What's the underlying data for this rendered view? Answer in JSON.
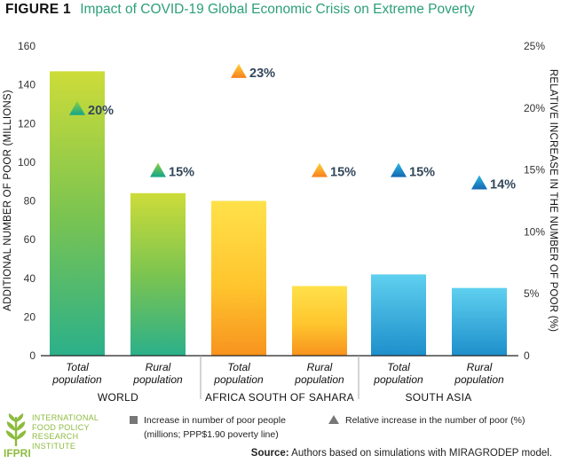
{
  "figure": {
    "number": "FIGURE 1",
    "title": "Impact of COVID-19 Global Economic Crisis on Extreme Poverty"
  },
  "colors": {
    "title": "#2c9f7a",
    "world_green": "#8dc63f",
    "africa_orange": "#f7a21b",
    "asia_blue": "#29a8df",
    "label_text": "#33475b"
  },
  "chart_data": {
    "type": "bar",
    "title": "",
    "ylabel_left": "ADDITIONAL NUMBER OF POOR (MILLIONS)",
    "ylabel_right": "RELATIVE INCREASE IN THE NUMBER OF POOR (%)",
    "ylim_left": [
      0,
      160
    ],
    "ylim_right": [
      0,
      25
    ],
    "yticks_left": [
      "0",
      "20",
      "40",
      "60",
      "80",
      "100",
      "120",
      "140",
      "160"
    ],
    "yticks_right": [
      "0",
      "5%",
      "10%",
      "15%",
      "20%",
      "25%"
    ],
    "groups": [
      "WORLD",
      "AFRICA SOUTH OF SAHARA",
      "SOUTH ASIA"
    ],
    "categories": [
      {
        "line1": "Total",
        "line2": "population",
        "group": "WORLD"
      },
      {
        "line1": "Rural",
        "line2": "population",
        "group": "WORLD"
      },
      {
        "line1": "Total",
        "line2": "population",
        "group": "AFRICA SOUTH OF SAHARA"
      },
      {
        "line1": "Rural",
        "line2": "population",
        "group": "AFRICA SOUTH OF SAHARA"
      },
      {
        "line1": "Total",
        "line2": "population",
        "group": "SOUTH ASIA"
      },
      {
        "line1": "Rural",
        "line2": "population",
        "group": "SOUTH ASIA"
      }
    ],
    "series": [
      {
        "name": "Increase in number of poor people (millions; PPP$1.90 poverty line)",
        "values": [
          147,
          84,
          80,
          36,
          42,
          35
        ]
      },
      {
        "name": "Relative increase in the number of poor (%)",
        "values": [
          20,
          15,
          23,
          15,
          15,
          14
        ],
        "labels": [
          "20%",
          "15%",
          "23%",
          "15%",
          "15%",
          "14%"
        ]
      }
    ],
    "grid": false,
    "legend_position": "bottom"
  },
  "legend": {
    "bars_line1": "Increase in number of poor people",
    "bars_line2": "(millions; PPP$1.90 poverty line)",
    "triangles": "Relative increase in the number of poor (%)"
  },
  "logo": {
    "lines": [
      "INTERNATIONAL",
      "FOOD POLICY",
      "RESEARCH",
      "INSTITUTE"
    ],
    "abbr": "IFPRI"
  },
  "source": {
    "label": "Source:",
    "text": " Authors based on simulations with MIRAGRODEP model."
  }
}
